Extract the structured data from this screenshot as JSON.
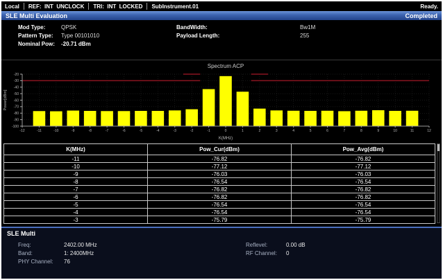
{
  "status_bar": {
    "segments": [
      "Local",
      "REF:  INT  UNCLOCK",
      "TRI:  INT  LOCKED",
      "SubInstrument.01"
    ],
    "right": "Ready."
  },
  "title_bar": {
    "title": "SLE Multi Evaluation",
    "status": "Completed"
  },
  "params": {
    "left": [
      {
        "label": "Mod Type:",
        "value": "QPSK"
      },
      {
        "label": "Pattern Type:",
        "value": "Type 00101010"
      },
      {
        "label": "Nominal Pow:",
        "value": "-20.71 dBm"
      }
    ],
    "right": [
      {
        "label": "BandWidth:",
        "value": "Bw1M"
      },
      {
        "label": "Payload Length:",
        "value": "255"
      }
    ]
  },
  "chart_data": {
    "type": "bar",
    "title": "Spectrum ACP",
    "xlabel": "K(MHz)",
    "ylabel": "Power[dBm]",
    "xlim": [
      -12,
      12
    ],
    "ylim": [
      -100,
      -20
    ],
    "y_ticks": [
      -20,
      -30,
      -40,
      -50,
      -60,
      -70,
      -80,
      -90,
      -100
    ],
    "x_ticks": [
      -12,
      -11,
      -10,
      -9,
      -8,
      -7,
      -6,
      -5,
      -4,
      -3,
      -2,
      -1,
      0,
      1,
      2,
      3,
      4,
      5,
      6,
      7,
      8,
      9,
      10,
      11,
      12
    ],
    "grid": true,
    "bar_color": "#ffff00",
    "limit_color": "#8a1420",
    "categories": [
      -11,
      -10,
      -9,
      -8,
      -7,
      -6,
      -5,
      -4,
      -3,
      -2,
      -1,
      0,
      1,
      2,
      3,
      4,
      5,
      6,
      7,
      8,
      9,
      10,
      11
    ],
    "values": [
      -76.82,
      -77.12,
      -76.03,
      -76.54,
      -76.82,
      -76.82,
      -76.54,
      -76.54,
      -75.79,
      -74.0,
      -43.0,
      -23.0,
      -47.0,
      -73.0,
      -75.8,
      -76.3,
      -76.5,
      -76.3,
      -77.0,
      -76.3,
      -75.5,
      -76.5,
      -76.3
    ],
    "limit_segments": [
      {
        "x1": -12,
        "x2": -1.5,
        "level": -30
      },
      {
        "x1": 1.5,
        "x2": 12,
        "level": -30
      },
      {
        "x1": -2.5,
        "x2": -1.5,
        "level": -20
      },
      {
        "x1": 1.5,
        "x2": 2.5,
        "level": -20
      }
    ]
  },
  "table": {
    "headers": [
      "K(MHz)",
      "Pow_Cur(dBm)",
      "Pow_Avg(dBm)"
    ],
    "rows": [
      [
        "-11",
        "-76.82",
        "-76.82"
      ],
      [
        "-10",
        "-77.12",
        "-77.12"
      ],
      [
        "-9",
        "-76.03",
        "-76.03"
      ],
      [
        "-8",
        "-76.54",
        "-76.54"
      ],
      [
        "-7",
        "-76.82",
        "-76.82"
      ],
      [
        "-6",
        "-76.82",
        "-76.82"
      ],
      [
        "-5",
        "-76.54",
        "-76.54"
      ],
      [
        "-4",
        "-76.54",
        "-76.54"
      ],
      [
        "-3",
        "-75.79",
        "-75.79"
      ]
    ]
  },
  "bottom": {
    "title": "SLE Multi",
    "left": [
      {
        "label": "Freq:",
        "value": "2402.00 MHz"
      },
      {
        "label": "Band:",
        "value": "1: 2400MHz"
      },
      {
        "label": "PHY Channel:",
        "value": "76"
      }
    ],
    "right": [
      {
        "label": "Reflevel:",
        "value": "0.00 dB"
      },
      {
        "label": "RF Channel:",
        "value": "0"
      }
    ]
  }
}
